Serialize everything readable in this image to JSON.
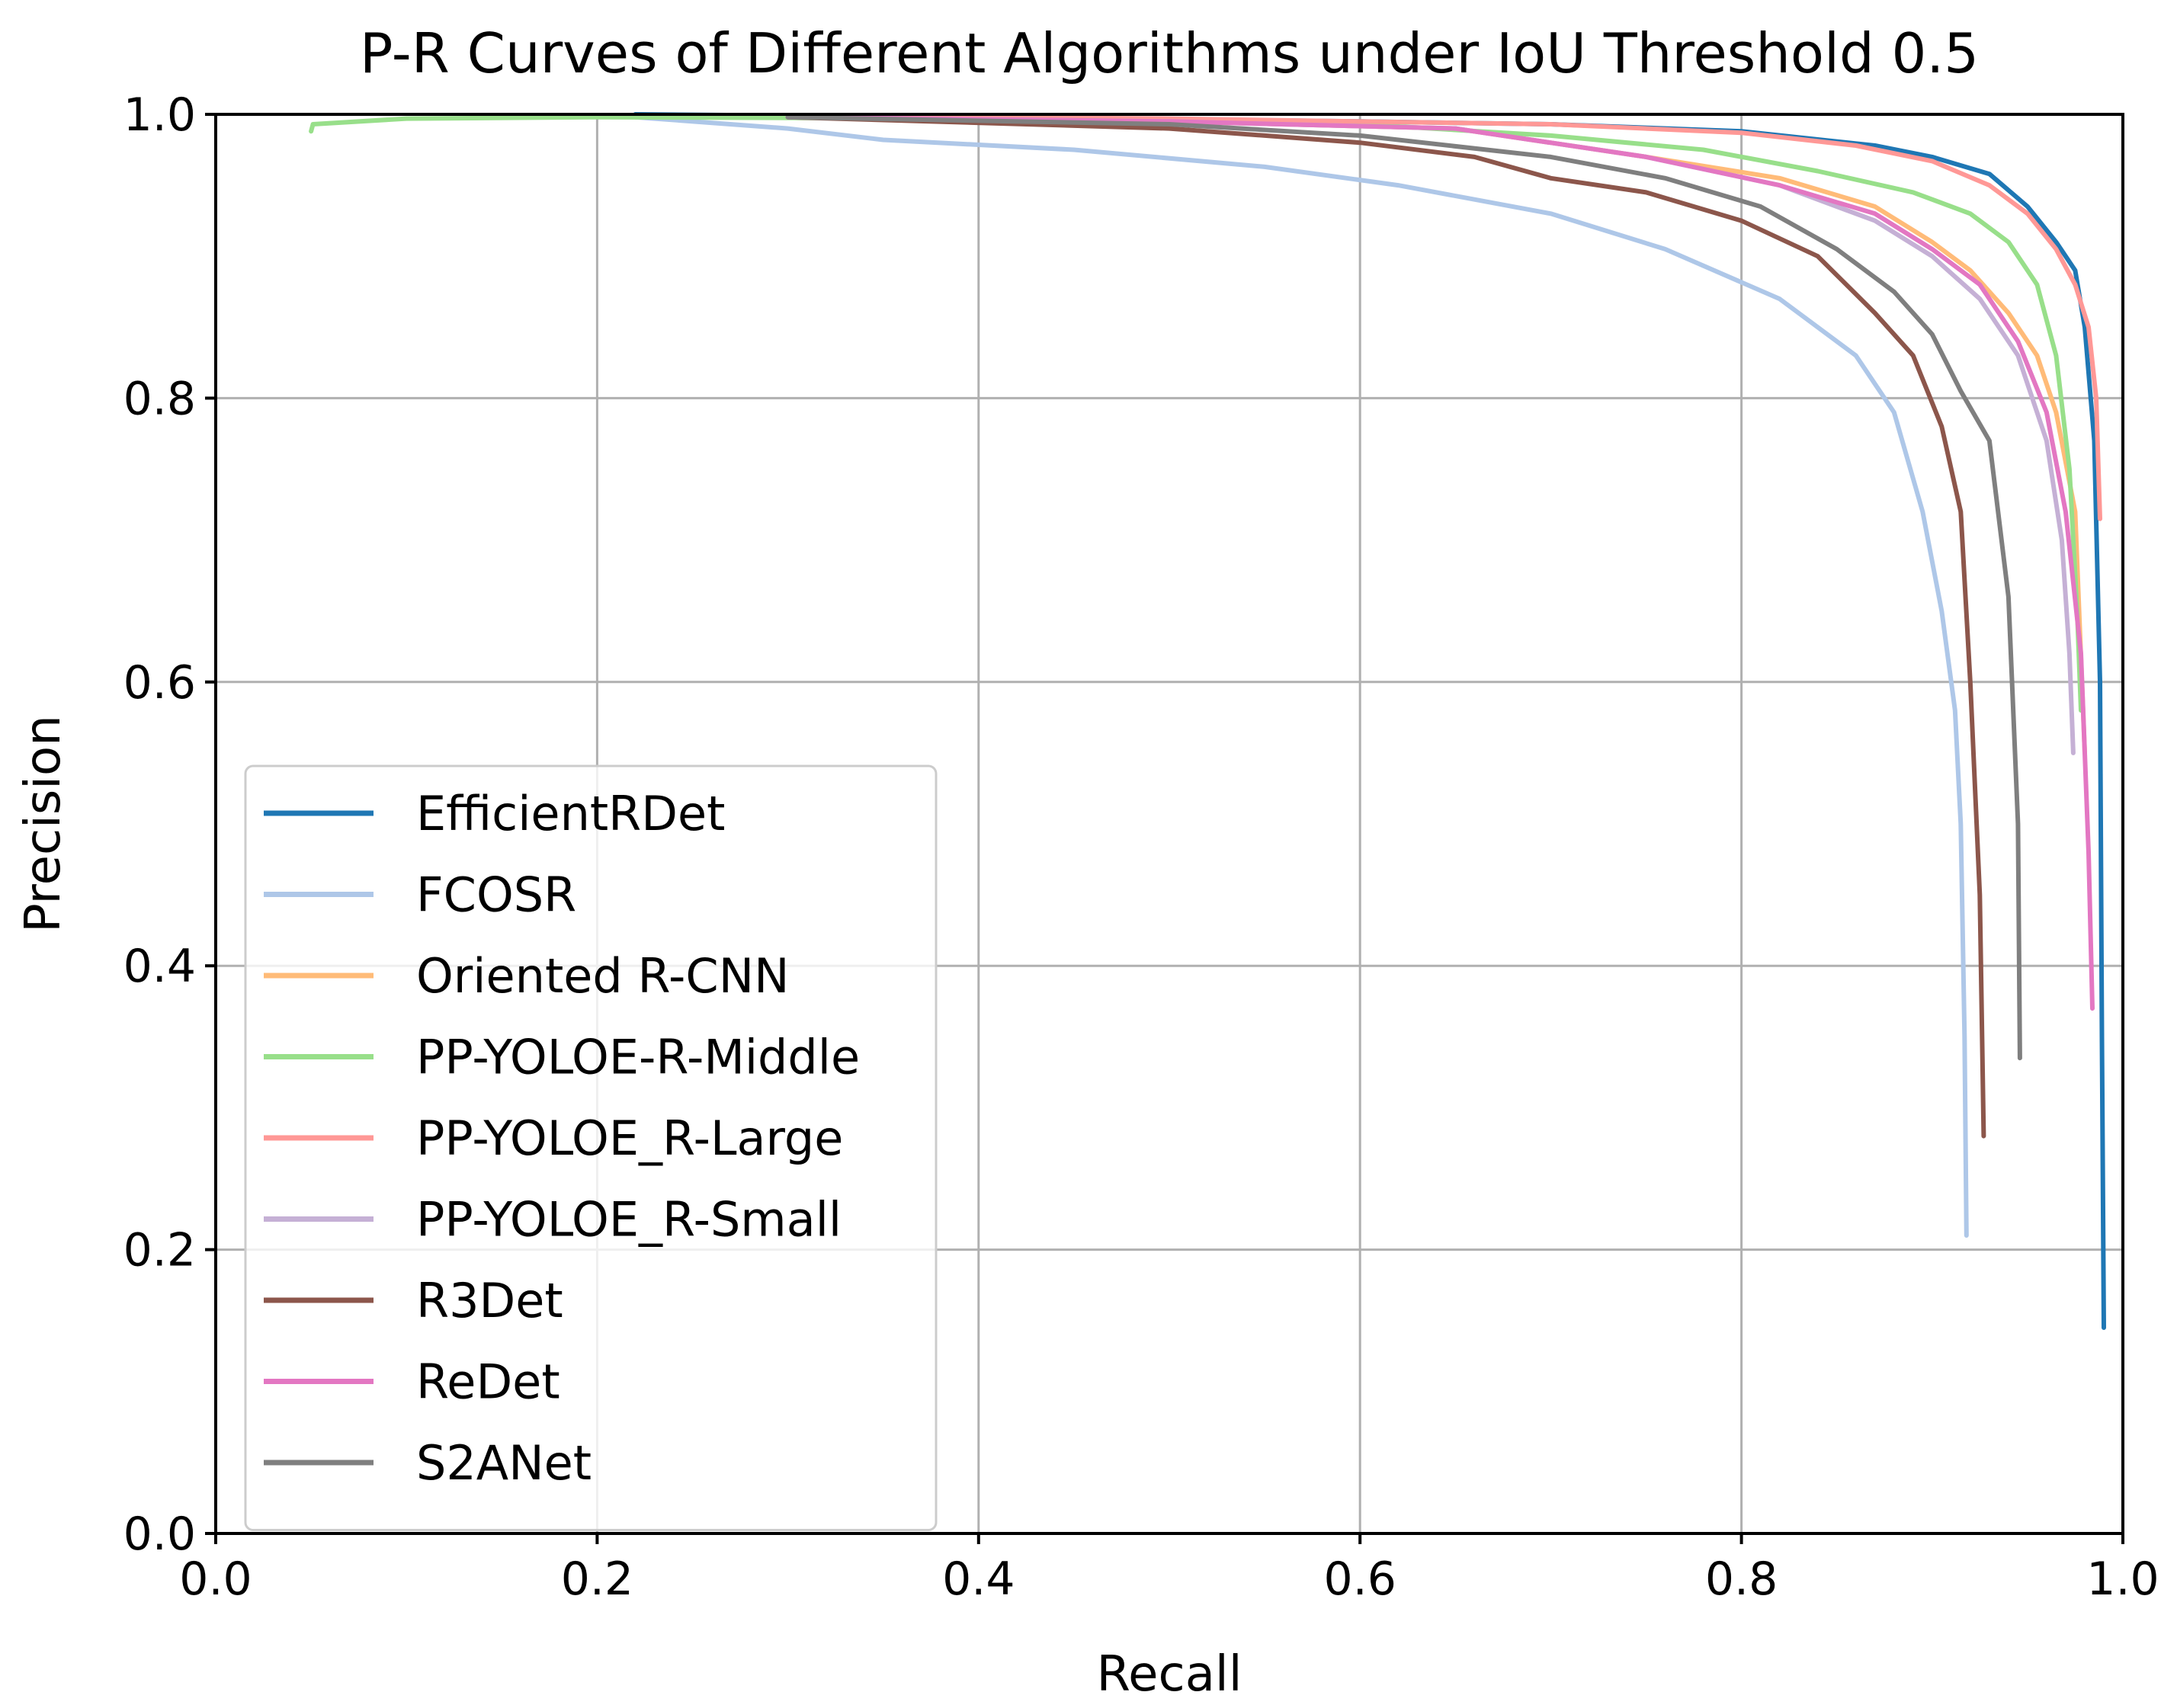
{
  "chart_data": {
    "type": "line",
    "title": "P-R Curves of Different Algorithms under IoU Threshold 0.5",
    "xlabel": "Recall",
    "ylabel": "Precision",
    "xlim": [
      0.0,
      1.0
    ],
    "ylim": [
      0.0,
      1.0
    ],
    "xticks": [
      "0.0",
      "0.2",
      "0.4",
      "0.6",
      "0.8",
      "1.0"
    ],
    "yticks": [
      "0.0",
      "0.2",
      "0.4",
      "0.6",
      "0.8",
      "1.0"
    ],
    "grid": true,
    "legend_position": "center-left",
    "series": [
      {
        "name": "EfficientRDet",
        "color": "#1f77b4",
        "x": [
          0.22,
          0.4,
          0.6,
          0.7,
          0.8,
          0.87,
          0.9,
          0.93,
          0.95,
          0.965,
          0.975,
          0.98,
          0.985,
          0.988,
          0.989,
          0.99
        ],
        "y": [
          1.0,
          0.998,
          0.995,
          0.993,
          0.988,
          0.978,
          0.97,
          0.958,
          0.935,
          0.91,
          0.89,
          0.85,
          0.77,
          0.6,
          0.35,
          0.145
        ]
      },
      {
        "name": "FCOSR",
        "color": "#aec7e8",
        "x": [
          0.22,
          0.3,
          0.35,
          0.45,
          0.55,
          0.62,
          0.7,
          0.76,
          0.82,
          0.86,
          0.88,
          0.895,
          0.905,
          0.912,
          0.915,
          0.917,
          0.918
        ],
        "y": [
          0.998,
          0.99,
          0.982,
          0.975,
          0.963,
          0.95,
          0.93,
          0.905,
          0.87,
          0.83,
          0.79,
          0.72,
          0.65,
          0.58,
          0.5,
          0.35,
          0.21
        ]
      },
      {
        "name": "Oriented R-CNN",
        "color": "#ffbb78",
        "x": [
          0.3,
          0.5,
          0.65,
          0.75,
          0.82,
          0.87,
          0.9,
          0.92,
          0.94,
          0.955,
          0.965,
          0.975,
          0.98
        ],
        "y": [
          0.998,
          0.995,
          0.99,
          0.97,
          0.955,
          0.935,
          0.91,
          0.89,
          0.86,
          0.83,
          0.79,
          0.72,
          0.55
        ]
      },
      {
        "name": "PP-YOLOE-R-Middle",
        "color": "#98df8a",
        "x": [
          0.05,
          0.051,
          0.1,
          0.2,
          0.4,
          0.6,
          0.7,
          0.78,
          0.84,
          0.89,
          0.92,
          0.94,
          0.955,
          0.965,
          0.972,
          0.976,
          0.978
        ],
        "y": [
          0.988,
          0.993,
          0.997,
          0.998,
          0.997,
          0.993,
          0.985,
          0.975,
          0.96,
          0.945,
          0.93,
          0.91,
          0.88,
          0.83,
          0.75,
          0.65,
          0.58
        ]
      },
      {
        "name": "PP-YOLOE_R-Large",
        "color": "#ff9896",
        "x": [
          0.3,
          0.5,
          0.7,
          0.8,
          0.86,
          0.9,
          0.93,
          0.95,
          0.965,
          0.975,
          0.982,
          0.986,
          0.988
        ],
        "y": [
          0.999,
          0.997,
          0.993,
          0.987,
          0.978,
          0.967,
          0.95,
          0.93,
          0.905,
          0.88,
          0.85,
          0.8,
          0.715
        ]
      },
      {
        "name": "PP-YOLOE_R-Small",
        "color": "#c5b0d5",
        "x": [
          0.3,
          0.5,
          0.65,
          0.75,
          0.82,
          0.87,
          0.9,
          0.925,
          0.945,
          0.96,
          0.968,
          0.972,
          0.974
        ],
        "y": [
          0.998,
          0.995,
          0.99,
          0.97,
          0.95,
          0.925,
          0.9,
          0.87,
          0.83,
          0.77,
          0.7,
          0.62,
          0.55
        ]
      },
      {
        "name": "R3Det",
        "color": "#8c564b",
        "x": [
          0.3,
          0.5,
          0.6,
          0.66,
          0.7,
          0.75,
          0.8,
          0.84,
          0.87,
          0.89,
          0.905,
          0.915,
          0.92,
          0.925,
          0.927
        ],
        "y": [
          0.998,
          0.99,
          0.98,
          0.97,
          0.955,
          0.945,
          0.925,
          0.9,
          0.86,
          0.83,
          0.78,
          0.72,
          0.6,
          0.45,
          0.28
        ]
      },
      {
        "name": "ReDet",
        "color": "#e377c2",
        "x": [
          0.3,
          0.5,
          0.65,
          0.75,
          0.82,
          0.87,
          0.9,
          0.925,
          0.945,
          0.96,
          0.97,
          0.978,
          0.982,
          0.984
        ],
        "y": [
          0.998,
          0.995,
          0.99,
          0.97,
          0.95,
          0.93,
          0.905,
          0.88,
          0.84,
          0.79,
          0.72,
          0.62,
          0.48,
          0.37
        ]
      },
      {
        "name": "S2ANet",
        "color": "#7f7f7f",
        "x": [
          0.3,
          0.5,
          0.6,
          0.7,
          0.76,
          0.81,
          0.85,
          0.88,
          0.9,
          0.915,
          0.93,
          0.94,
          0.945,
          0.946
        ],
        "y": [
          0.998,
          0.993,
          0.985,
          0.97,
          0.955,
          0.935,
          0.905,
          0.875,
          0.845,
          0.805,
          0.77,
          0.66,
          0.5,
          0.335
        ]
      }
    ]
  }
}
